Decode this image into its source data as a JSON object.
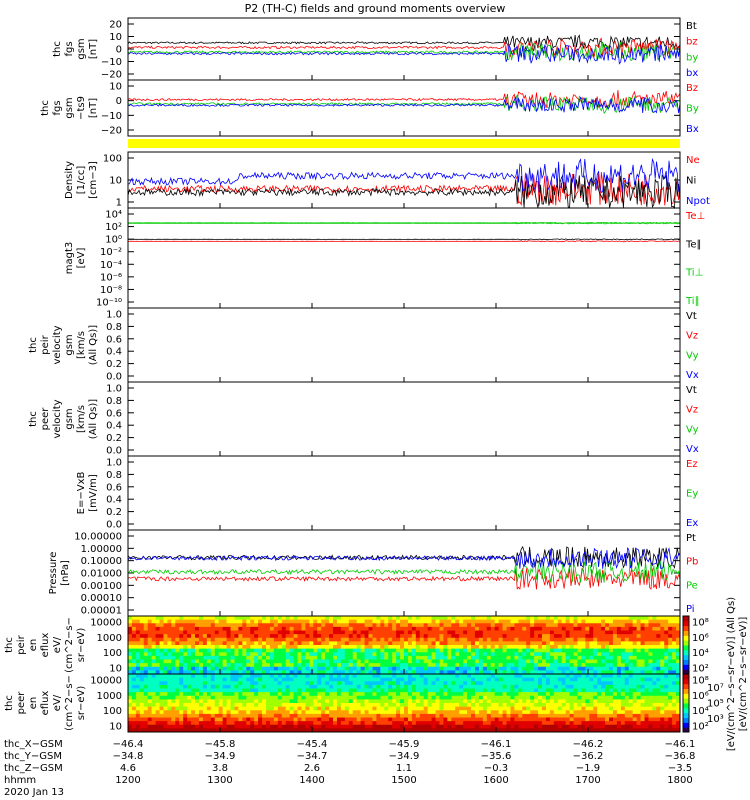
{
  "title": "P2 (TH-C) fields and ground moments overview",
  "chart_data": {
    "type": "line",
    "title": "P2 (TH-C) fields and ground moments overview",
    "x_range_hhmm": [
      "1200",
      "1800"
    ],
    "panels": [
      {
        "id": "fgs-gsm",
        "ylabel": [
          "thc",
          "fgs",
          "gsm",
          "[nT]"
        ],
        "ticks": [
          "20",
          "10",
          "0",
          "−10",
          "−20"
        ],
        "ylim": [
          -20,
          20
        ],
        "scale": "linear",
        "series": [
          {
            "name": "Bt",
            "color": "#000000",
            "level": 4
          },
          {
            "name": "bz",
            "color": "#ff0000",
            "level": 1
          },
          {
            "name": "by",
            "color": "#00cc00",
            "level": -2
          },
          {
            "name": "bx",
            "color": "#0000ff",
            "level": -3
          }
        ]
      },
      {
        "id": "fgs-gsm-ts9",
        "ylabel": [
          "thc",
          "fgs",
          "gsm",
          "−ts9",
          "[nT]"
        ],
        "ticks": [
          "10",
          "0",
          "−10",
          "−20"
        ],
        "ylim": [
          -25,
          15
        ],
        "scale": "linear",
        "series": [
          {
            "name": "Bz",
            "color": "#ff0000",
            "level": 1
          },
          {
            "name": "By",
            "color": "#00cc00",
            "level": -2
          },
          {
            "name": "Bx",
            "color": "#0000ff",
            "level": -3
          }
        ]
      },
      {
        "id": "density",
        "ylabel": [
          "Density",
          "[1/cc]",
          "[cm−3]"
        ],
        "ticks": [
          "100",
          "10",
          "1"
        ],
        "ylim": [
          1,
          300
        ],
        "scale": "log",
        "series": [
          {
            "name": "Ne",
            "color": "#ff0000",
            "level": 7
          },
          {
            "name": "Ni",
            "color": "#000000",
            "level": 5
          },
          {
            "name": "Npot",
            "color": "#0000ff",
            "level": 15
          }
        ]
      },
      {
        "id": "temperature",
        "ylabel": [
          "magt3",
          "[eV]"
        ],
        "ticks": [
          "10⁴",
          "10²",
          "10⁰",
          "10⁻²",
          "10⁻⁴",
          "10⁻⁶",
          "10⁻⁸",
          "10⁻¹⁰"
        ],
        "ylim": [
          1e-10,
          100000.0
        ],
        "scale": "log",
        "series": [
          {
            "name": "Te⊥",
            "color": "#ff0000",
            "level": 1
          },
          {
            "name": "Te∥",
            "color": "#000000",
            "level": 2
          },
          {
            "name": "Ti⊥",
            "color": "#00cc00",
            "level": 500
          },
          {
            "name": "Ti∥",
            "color": "#00cc00",
            "level": 600
          }
        ]
      },
      {
        "id": "peir-velocity",
        "ylabel": [
          "thc",
          "peir",
          "velocity",
          "gsm",
          "[km/s (All Qs)]"
        ],
        "ticks": [
          "1.0",
          "0.8",
          "0.6",
          "0.4",
          "0.2",
          "0.0"
        ],
        "ylim": [
          0,
          1
        ],
        "scale": "linear",
        "series": [
          {
            "name": "Vt",
            "color": "#000000"
          },
          {
            "name": "Vz",
            "color": "#ff0000"
          },
          {
            "name": "Vy",
            "color": "#00cc00"
          },
          {
            "name": "Vx",
            "color": "#0000ff"
          }
        ]
      },
      {
        "id": "peer-velocity",
        "ylabel": [
          "thc",
          "peer",
          "velocity",
          "gsm",
          "[km/s (All Qs)]"
        ],
        "ticks": [
          "1.0",
          "0.8",
          "0.6",
          "0.4",
          "0.2",
          "0.0"
        ],
        "ylim": [
          0,
          1
        ],
        "scale": "linear",
        "series": [
          {
            "name": "Vt",
            "color": "#000000"
          },
          {
            "name": "Vz",
            "color": "#ff0000"
          },
          {
            "name": "Vy",
            "color": "#00cc00"
          },
          {
            "name": "Vx",
            "color": "#0000ff"
          }
        ]
      },
      {
        "id": "efield",
        "ylabel": [
          "E=−VxB",
          "[mV/m]"
        ],
        "ticks": [
          "1.0",
          "0.8",
          "0.6",
          "0.4",
          "0.2",
          "0.0"
        ],
        "ylim": [
          0,
          1
        ],
        "scale": "linear",
        "series": [
          {
            "name": "Ez",
            "color": "#ff0000"
          },
          {
            "name": "Ey",
            "color": "#00cc00"
          },
          {
            "name": "Ex",
            "color": "#0000ff"
          }
        ]
      },
      {
        "id": "pressure",
        "ylabel": [
          "Pressure",
          "[nPa]"
        ],
        "ticks": [
          "10.00000",
          "1.00000",
          "0.10000",
          "0.01000",
          "0.00100",
          "0.00010",
          "0.00001"
        ],
        "ylim": [
          1e-05,
          10
        ],
        "scale": "log",
        "series": [
          {
            "name": "Pt",
            "color": "#000000",
            "level": 0.12
          },
          {
            "name": "Pb",
            "color": "#ff0000",
            "level": 0.004
          },
          {
            "name": "Pe",
            "color": "#00cc00",
            "level": 0.012
          },
          {
            "name": "Pi",
            "color": "#0000ff",
            "level": 0.11
          }
        ]
      },
      {
        "id": "peir-eflux",
        "ylabel": [
          "thc",
          "peir",
          "en",
          "eflux",
          "eV/",
          "(cm^2−s−",
          "sr−eV)"
        ],
        "ticks": [
          "10000",
          "1000",
          "100",
          "10"
        ],
        "scale": "log",
        "type": "spectrogram",
        "colorbar": {
          "ticks": [
            "10⁸",
            "10⁶",
            "10⁴",
            "10²"
          ],
          "label": "[eV/(cm^2−s−sr−eV)] (All Qs)"
        }
      },
      {
        "id": "peer-eflux",
        "ylabel": [
          "thc",
          "peer",
          "en",
          "eflux",
          "eV/",
          "(cm^2−s−",
          "sr−eV)"
        ],
        "ticks": [
          "10000",
          "1000",
          "100",
          "10"
        ],
        "scale": "log",
        "type": "spectrogram",
        "colorbar": {
          "ticks": [
            "10⁸",
            "10⁷",
            "10⁶",
            "10⁵",
            "10⁴",
            "10³",
            "10²"
          ],
          "label": "[eV/(cm^2−s−sr−eV)]"
        }
      }
    ]
  },
  "ephemeris": {
    "labels": [
      "thc_X−GSM",
      "thc_Y−GSM",
      "thc_Z−GSM",
      "hhmm"
    ],
    "rows": [
      [
        "−46.4",
        "−45.8",
        "−45.4",
        "−45.9",
        "−46.1",
        "−46.2",
        "−46.1"
      ],
      [
        "−34.8",
        "−34.9",
        "−34.7",
        "−34.9",
        "−35.6",
        "−36.2",
        "−36.8"
      ],
      [
        "4.6",
        "3.8",
        "2.6",
        "1.1",
        "−0.3",
        "−1.9",
        "−3.5"
      ],
      [
        "1200",
        "1300",
        "1400",
        "1500",
        "1600",
        "1700",
        "1800"
      ]
    ],
    "date": "2020 Jan 13"
  }
}
